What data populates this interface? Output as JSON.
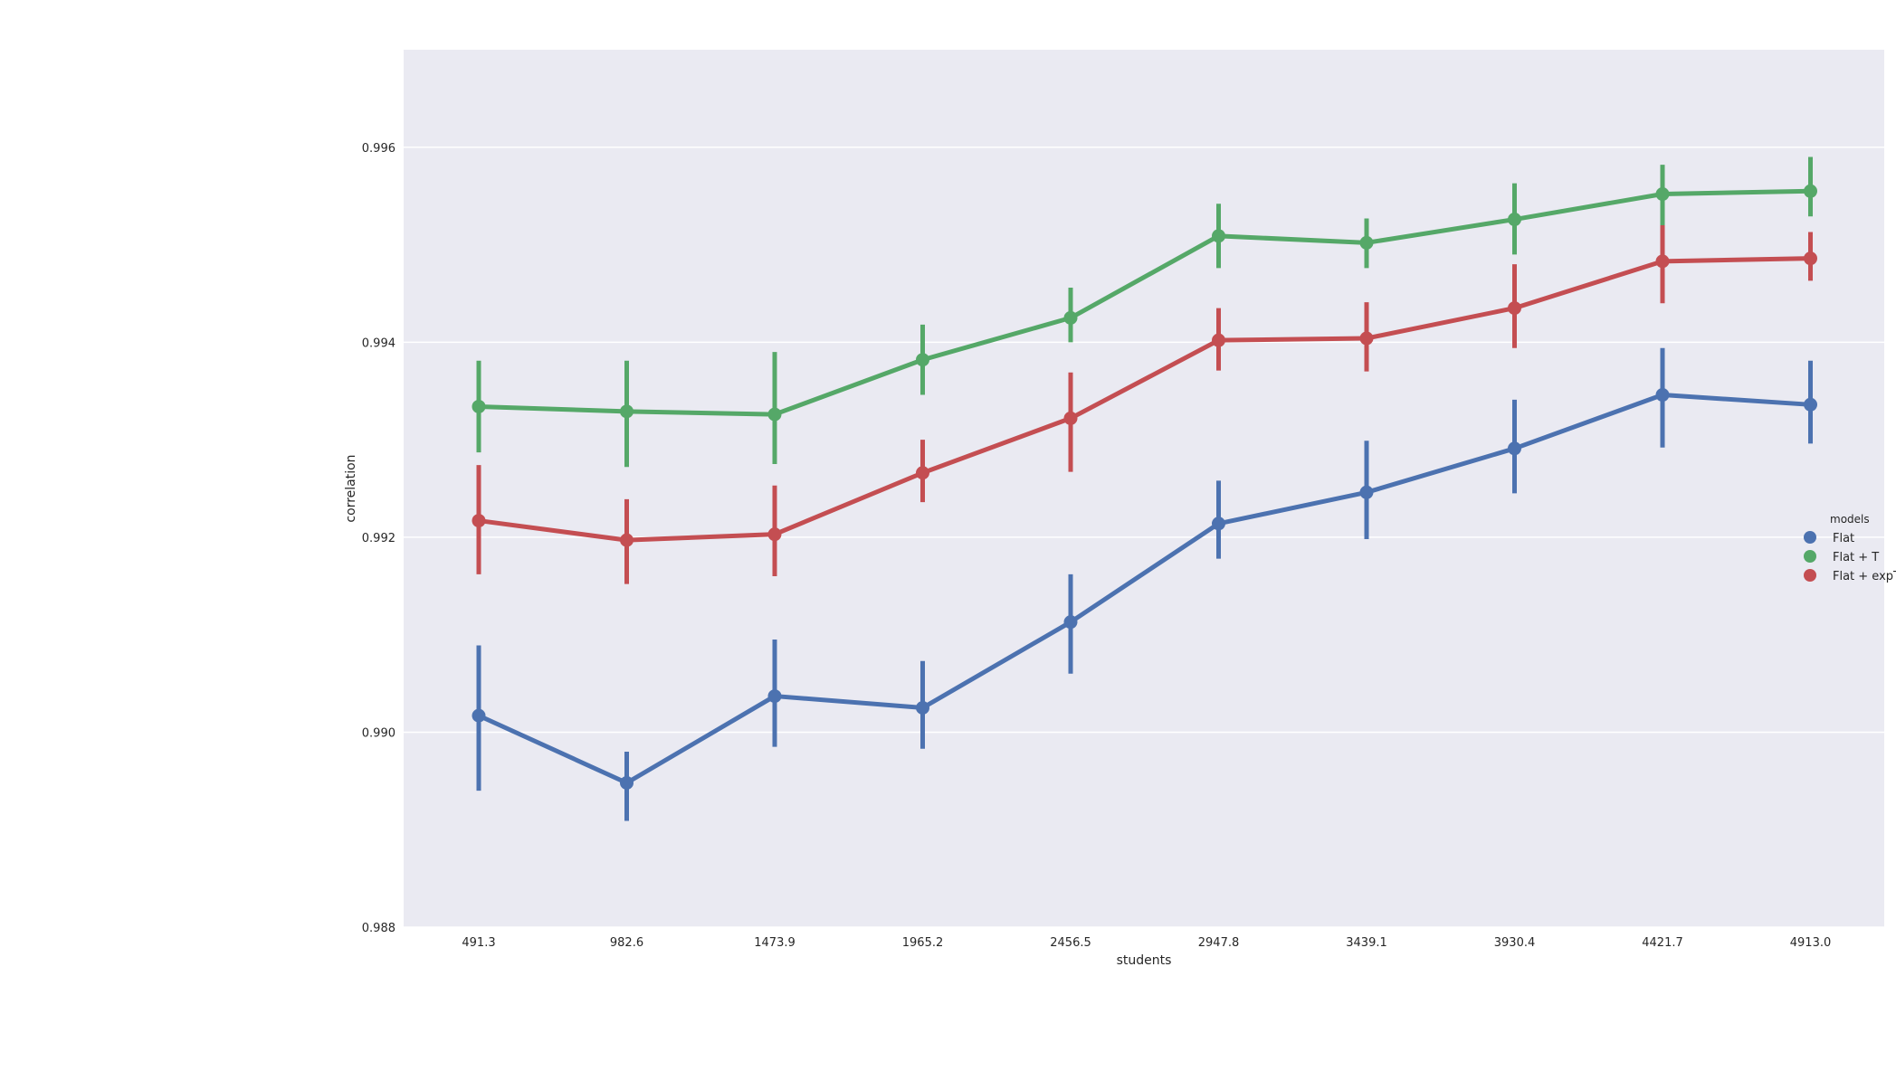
{
  "chart_data": {
    "type": "line",
    "title": "",
    "xlabel": "students",
    "ylabel": "correlation",
    "ylim": [
      0.988,
      0.997
    ],
    "yticks": [
      "0.988",
      "0.990",
      "0.992",
      "0.994",
      "0.996"
    ],
    "ytick_values": [
      0.988,
      0.99,
      0.992,
      0.994,
      0.996
    ],
    "categories": [
      "491.3",
      "982.6",
      "1473.9",
      "1965.2",
      "2456.5",
      "2947.8",
      "3439.1",
      "3930.4",
      "4421.7",
      "4913.0"
    ],
    "grid": "horizontal",
    "legend": {
      "title": "models",
      "placement": "center-right"
    },
    "series": [
      {
        "name": "Flat",
        "color": "#4c72b0",
        "values": [
          0.99017,
          0.98948,
          0.99037,
          0.99025,
          0.99113,
          0.99214,
          0.99246,
          0.99291,
          0.99346,
          0.99336
        ],
        "err_low": [
          0.9894,
          0.98909,
          0.98985,
          0.98983,
          0.9906,
          0.99178,
          0.99198,
          0.99245,
          0.99292,
          0.99296
        ],
        "err_high": [
          0.99089,
          0.9898,
          0.99095,
          0.99073,
          0.99162,
          0.99258,
          0.99299,
          0.99341,
          0.99394,
          0.99381
        ]
      },
      {
        "name": "Flat + T",
        "color": "#55a868",
        "values": [
          0.99334,
          0.99329,
          0.99326,
          0.99382,
          0.99425,
          0.99509,
          0.99502,
          0.99526,
          0.99552,
          0.99555
        ],
        "err_low": [
          0.99287,
          0.99272,
          0.99275,
          0.99346,
          0.994,
          0.99476,
          0.99476,
          0.9949,
          0.9952,
          0.99529
        ],
        "err_high": [
          0.99381,
          0.99381,
          0.9939,
          0.99418,
          0.99456,
          0.99542,
          0.99527,
          0.99563,
          0.99582,
          0.9959
        ]
      },
      {
        "name": "Flat + expT",
        "color": "#c44e52",
        "values": [
          0.99217,
          0.99197,
          0.99203,
          0.99266,
          0.99322,
          0.99402,
          0.99404,
          0.99435,
          0.99483,
          0.99486
        ],
        "err_low": [
          0.99162,
          0.99152,
          0.9916,
          0.99236,
          0.99267,
          0.99371,
          0.9937,
          0.99394,
          0.9944,
          0.99463
        ],
        "err_high": [
          0.99274,
          0.99239,
          0.99253,
          0.993,
          0.99369,
          0.99435,
          0.99441,
          0.9948,
          0.9952,
          0.99513
        ]
      }
    ]
  }
}
